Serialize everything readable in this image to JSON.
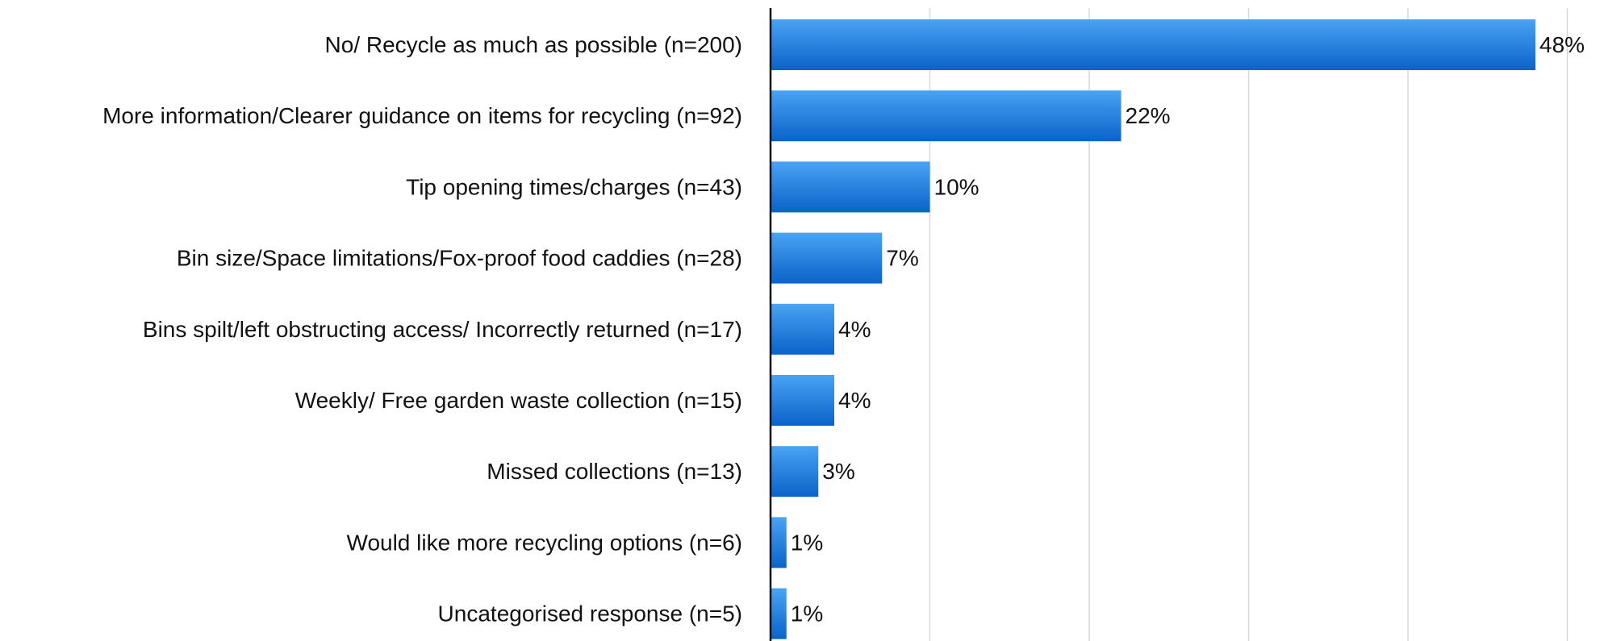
{
  "chart_data": {
    "type": "bar",
    "orientation": "horizontal",
    "categories": [
      "No/ Recycle as much as possible (n=200)",
      "More information/Clearer guidance on items for recycling (n=92)",
      "Tip opening times/charges (n=43)",
      "Bin size/Space limitations/Fox-proof food caddies (n=28)",
      "Bins spilt/left obstructing access/ Incorrectly returned (n=17)",
      "Weekly/ Free garden waste collection  (n=15)",
      "Missed collections (n=13)",
      "Would like more recycling options (n=6)",
      "Uncategorised response (n=5)"
    ],
    "values": [
      48,
      22,
      10,
      7,
      4,
      4,
      3,
      1,
      1
    ],
    "value_labels": [
      "48%",
      "22%",
      "10%",
      "7%",
      "4%",
      "4%",
      "3%",
      "1%",
      "1%"
    ],
    "xlim": [
      0,
      50
    ],
    "grid": true,
    "colors": {
      "bar_top": "#4aa3f2",
      "bar_bottom": "#0a63c9",
      "grid": "#d7d7d7",
      "axis": "#111111"
    }
  }
}
